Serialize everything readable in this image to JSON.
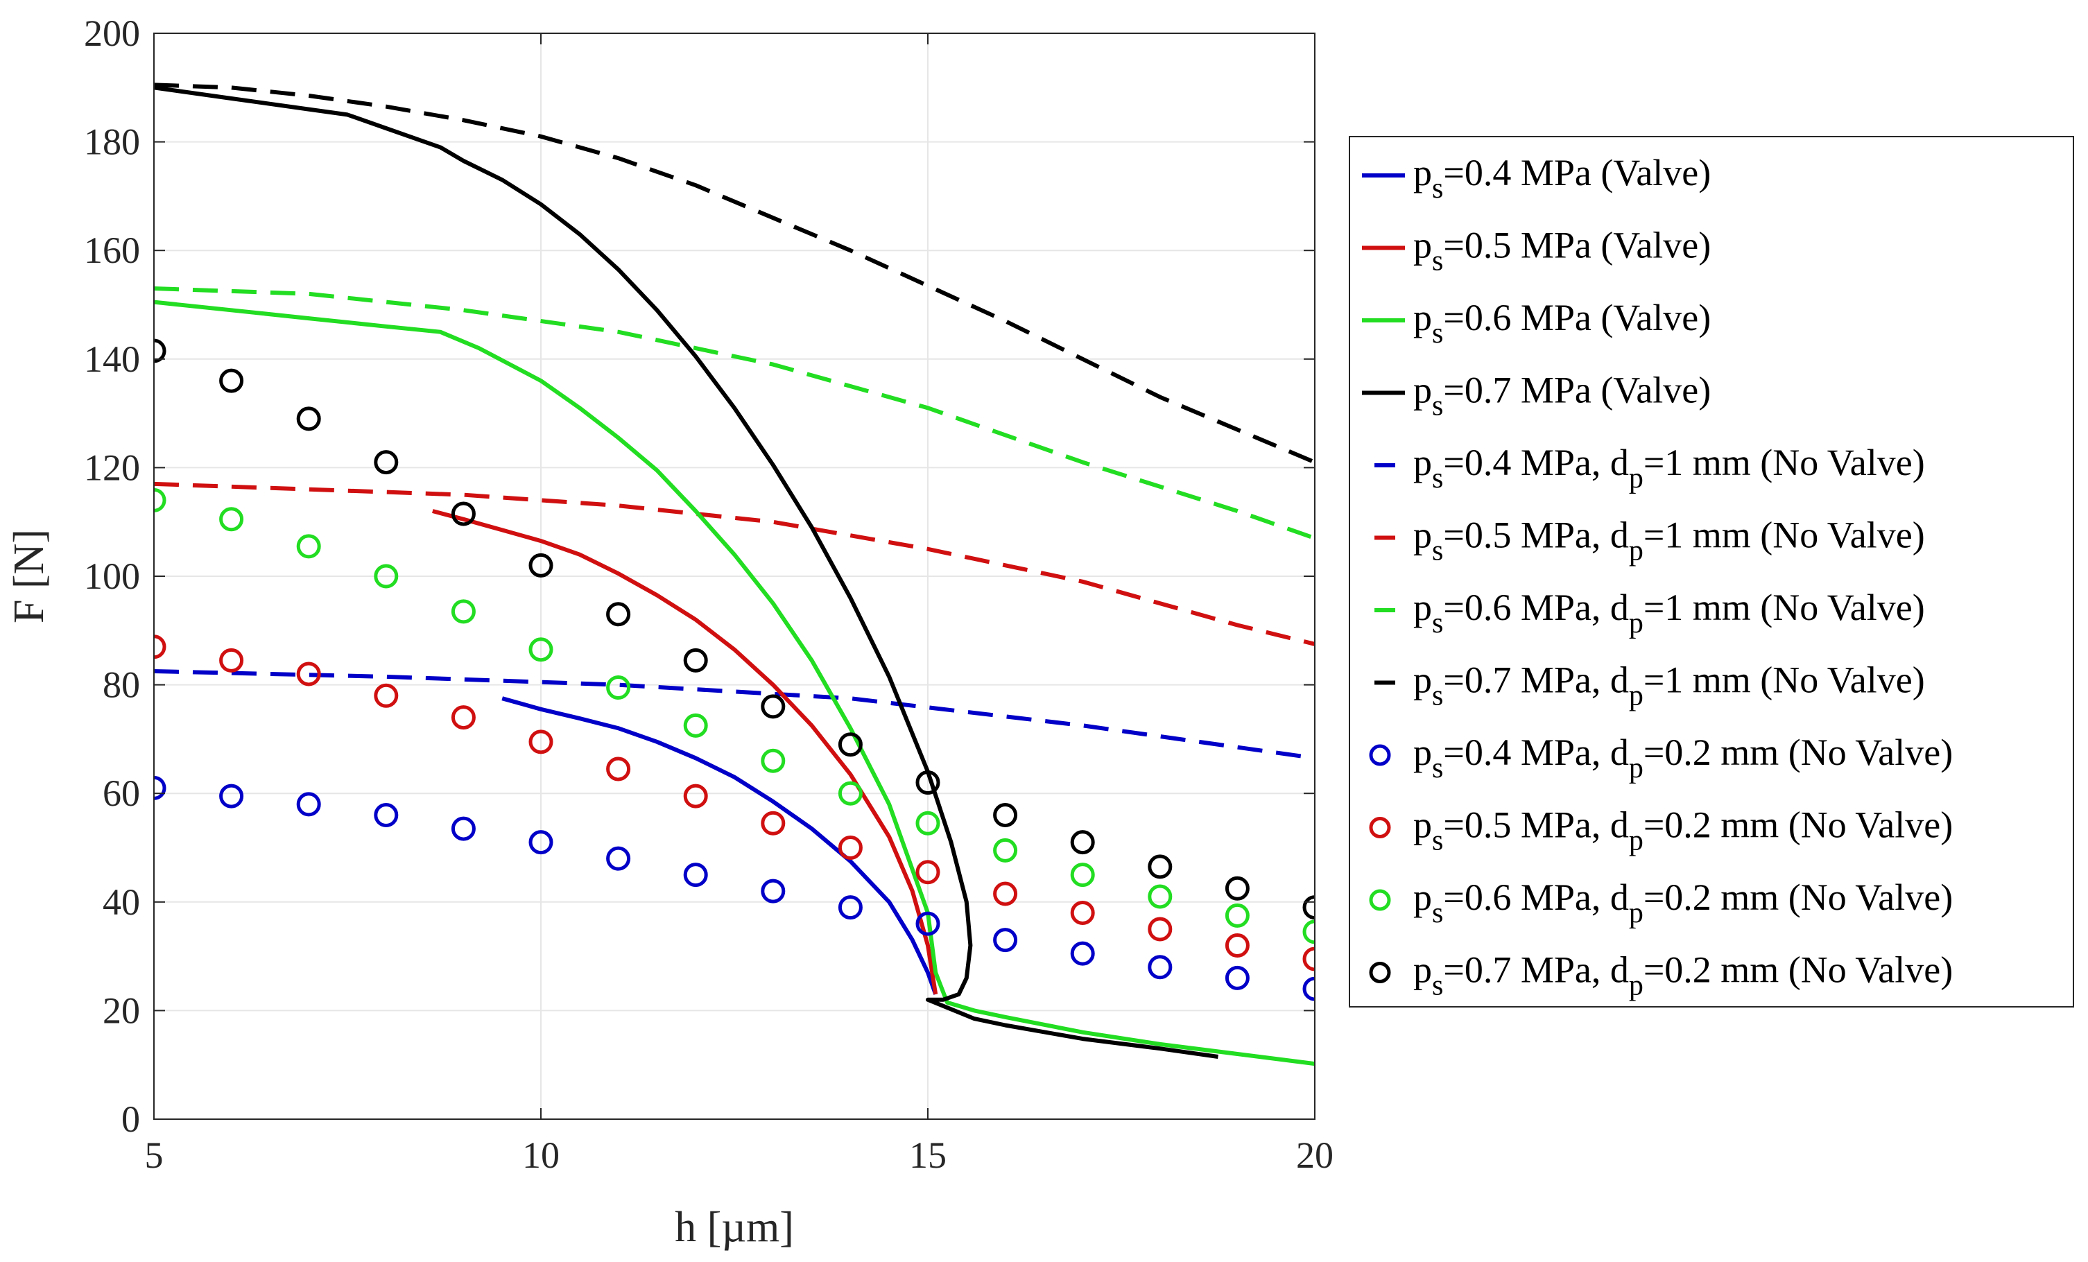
{
  "chart_data": {
    "type": "line",
    "title": "",
    "xlabel": "h [µm]",
    "ylabel": "F [N]",
    "xlim": [
      5,
      20
    ],
    "ylim": [
      0,
      200
    ],
    "xticks": [
      5,
      10,
      15,
      20
    ],
    "yticks": [
      0,
      20,
      40,
      60,
      80,
      100,
      120,
      140,
      160,
      180,
      200
    ],
    "grid": true,
    "legend_position": "right",
    "series": [
      {
        "name": "p_s=0.4 MPa (Valve)",
        "label_main": "=0.4 MPa (Valve)",
        "sub": "s",
        "style": "solid",
        "color": "#0000c8",
        "x": [
          9.5,
          10.0,
          10.5,
          11.0,
          11.5,
          12.0,
          12.5,
          13.0,
          13.5,
          14.0,
          14.5,
          14.8,
          15.0,
          15.1
        ],
        "y": [
          77.5,
          75.5,
          73.8,
          72.0,
          69.5,
          66.5,
          63.0,
          58.5,
          53.5,
          47.5,
          40.0,
          33.0,
          27.0,
          23.0
        ]
      },
      {
        "name": "p_s=0.5 MPa (Valve)",
        "label_main": "=0.5 MPa (Valve)",
        "sub": "s",
        "style": "solid",
        "color": "#d01010",
        "x": [
          8.6,
          9.0,
          9.5,
          10.0,
          10.5,
          11.0,
          11.5,
          12.0,
          12.5,
          13.0,
          13.5,
          14.0,
          14.5,
          14.8,
          15.0,
          15.1
        ],
        "y": [
          112.0,
          110.5,
          108.5,
          106.5,
          104.0,
          100.5,
          96.5,
          92.0,
          86.5,
          80.0,
          72.5,
          63.5,
          52.0,
          42.0,
          32.0,
          23.0
        ]
      },
      {
        "name": "p_s=0.6 MPa (Valve)",
        "label_main": "=0.6 MPa (Valve)",
        "sub": "s",
        "style": "solid",
        "color": "#22dd22",
        "x": [
          5.0,
          6.0,
          7.0,
          8.0,
          8.7,
          9.2,
          10.0,
          10.5,
          11.0,
          11.5,
          12.0,
          12.5,
          13.0,
          13.5,
          14.0,
          14.5,
          15.0,
          15.1,
          15.25,
          15.6,
          16.0,
          17.0,
          18.0,
          19.0,
          20.0
        ],
        "y": [
          150.5,
          149.0,
          147.5,
          146.0,
          145.0,
          142.0,
          136.0,
          131.0,
          125.5,
          119.5,
          112.0,
          104.0,
          95.0,
          84.5,
          72.0,
          58.0,
          38.0,
          27.0,
          21.5,
          20.0,
          18.8,
          16.0,
          13.8,
          12.0,
          10.2
        ]
      },
      {
        "name": "p_s=0.7 MPa (Valve)",
        "label_main": "=0.7 MPa (Valve)",
        "sub": "s",
        "style": "solid",
        "color": "#000000",
        "x": [
          5.0,
          6.0,
          7.0,
          7.5,
          8.0,
          8.7,
          9.0,
          9.5,
          10.0,
          10.5,
          11.0,
          11.5,
          12.0,
          12.5,
          13.0,
          13.5,
          14.0,
          14.5,
          15.0,
          15.3,
          15.5,
          15.55,
          15.5,
          15.4,
          15.2,
          15.0,
          15.6,
          16.0,
          17.0,
          18.0,
          18.75
        ],
        "y": [
          190.0,
          188.0,
          186.0,
          185.0,
          182.5,
          179.0,
          176.5,
          173.0,
          168.5,
          163.0,
          156.5,
          149.0,
          140.5,
          131.0,
          120.5,
          109.0,
          96.0,
          81.5,
          64.0,
          51.0,
          40.0,
          32.0,
          26.0,
          23.0,
          22.0,
          22.0,
          18.5,
          17.3,
          14.8,
          13.0,
          11.5
        ]
      },
      {
        "name": "p_s=0.4 MPa, d_p=1 mm (No Valve)",
        "label_main": "=0.4 MPa, d",
        "label_tail": "=1 mm (No Valve)",
        "sub": "s",
        "sub2": "p",
        "style": "dashed",
        "color": "#0000c8",
        "x": [
          5,
          8,
          11,
          14,
          17,
          20
        ],
        "y": [
          82.5,
          81.5,
          80.0,
          77.5,
          72.5,
          66.5
        ]
      },
      {
        "name": "p_s=0.5 MPa, d_p=1 mm (No Valve)",
        "label_main": "=0.5 MPa, d",
        "label_tail": "=1 mm (No Valve)",
        "sub": "s",
        "sub2": "p",
        "style": "dashed",
        "color": "#d01010",
        "x": [
          5,
          7,
          9,
          11,
          13,
          15,
          17,
          19,
          20
        ],
        "y": [
          117.0,
          116.0,
          115.0,
          113.0,
          110.0,
          105.0,
          99.0,
          91.0,
          87.5
        ]
      },
      {
        "name": "p_s=0.6 MPa, d_p=1 mm (No Valve)",
        "label_main": "=0.6 MPa, d",
        "label_tail": "=1 mm (No Valve)",
        "sub": "s",
        "sub2": "p",
        "style": "dashed",
        "color": "#22dd22",
        "x": [
          5,
          7,
          9,
          11,
          13,
          15,
          17,
          19,
          20
        ],
        "y": [
          153.0,
          152.0,
          149.0,
          145.0,
          139.0,
          131.0,
          121.0,
          112.0,
          107.0
        ]
      },
      {
        "name": "p_s=0.7 MPa, d_p=1 mm (No Valve)",
        "label_main": "=0.7 MPa, d",
        "label_tail": "=1 mm (No Valve)",
        "sub": "s",
        "sub2": "p",
        "style": "dashed",
        "color": "#000000",
        "x": [
          5,
          6,
          7,
          8,
          9,
          10,
          11,
          12,
          13,
          14,
          15,
          16,
          17,
          18,
          19,
          20
        ],
        "y": [
          190.5,
          190.0,
          188.5,
          186.5,
          184.0,
          181.0,
          177.0,
          172.0,
          166.0,
          160.0,
          153.5,
          147.0,
          140.0,
          133.0,
          127.0,
          121.0
        ]
      },
      {
        "name": "p_s=0.4 MPa, d_p=0.2 mm (No Valve)",
        "label_main": "=0.4 MPa, d",
        "label_tail": "=0.2 mm (No Valve)",
        "sub": "s",
        "sub2": "p",
        "style": "marker",
        "color": "#0000c8",
        "x": [
          5,
          6,
          7,
          8,
          9,
          10,
          11,
          12,
          13,
          14,
          15,
          16,
          17,
          18,
          19,
          20
        ],
        "y": [
          61,
          59.5,
          58,
          56,
          53.5,
          51,
          48,
          45,
          42,
          39,
          36,
          33,
          30.5,
          28,
          26,
          24
        ]
      },
      {
        "name": "p_s=0.5 MPa, d_p=0.2 mm (No Valve)",
        "label_main": "=0.5 MPa, d",
        "label_tail": "=0.2 mm (No Valve)",
        "sub": "s",
        "sub2": "p",
        "style": "marker",
        "color": "#d01010",
        "x": [
          5,
          6,
          7,
          8,
          9,
          10,
          11,
          12,
          13,
          14,
          15,
          16,
          17,
          18,
          19,
          20
        ],
        "y": [
          87,
          84.5,
          82,
          78,
          74,
          69.5,
          64.5,
          59.5,
          54.5,
          50,
          45.5,
          41.5,
          38,
          35,
          32,
          29.5
        ]
      },
      {
        "name": "p_s=0.6 MPa, d_p=0.2 mm (No Valve)",
        "label_main": "=0.6 MPa, d",
        "label_tail": "=0.2 mm (No Valve)",
        "sub": "s",
        "sub2": "p",
        "style": "marker",
        "color": "#22dd22",
        "x": [
          5,
          6,
          7,
          8,
          9,
          10,
          11,
          12,
          13,
          14,
          15,
          16,
          17,
          18,
          19,
          20
        ],
        "y": [
          114,
          110.5,
          105.5,
          100,
          93.5,
          86.5,
          79.5,
          72.5,
          66,
          60,
          54.5,
          49.5,
          45,
          41,
          37.5,
          34.5
        ]
      },
      {
        "name": "p_s=0.7 MPa, d_p=0.2 mm (No Valve)",
        "label_main": "=0.7 MPa, d",
        "label_tail": "=0.2 mm (No Valve)",
        "sub": "s",
        "sub2": "p",
        "style": "marker",
        "color": "#000000",
        "x": [
          5,
          6,
          7,
          8,
          9,
          10,
          11,
          12,
          13,
          14,
          15,
          16,
          17,
          18,
          19,
          20
        ],
        "y": [
          141.5,
          136,
          129,
          121,
          111.5,
          102,
          93,
          84.5,
          76,
          69,
          62,
          56,
          51,
          46.5,
          42.5,
          39
        ]
      }
    ],
    "legend_prefix": "p"
  }
}
